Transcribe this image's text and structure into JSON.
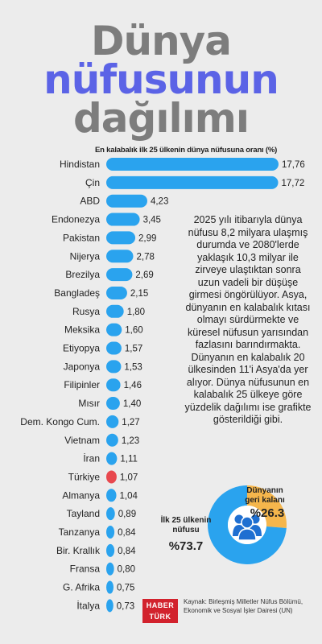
{
  "title": {
    "line1": "Dünya",
    "line2": "nüfusunun",
    "line3": "dağılımı"
  },
  "description": "2025 yılı itibarıyla dünya nüfusu 8,2 milyara ulaşmış durumda ve 2080'lerde yaklaşık 10,3 milyar ile zirveye ulaştıktan sonra uzun vadeli bir düşüşe girmesi öngörülüyor. Asya, dünyanın en kalabalık kıtası olmayı sürdürmekte ve küresel nüfusun yarısından fazlasını barındırmakta. Dünyanın en kalabalık 20 ülkesinden 11'i Asya'da yer alıyor. Dünya nüfusunun en kalabalık 25 ülkeye göre yüzdelik dağılımı ise grafikte gösterildiği gibi.",
  "source": {
    "logo_line1": "HABER",
    "logo_line2": "TÜRK",
    "text": "Kaynak: Birleşmiş Milletler Nüfus Bölümü, Ekonomik ve Sosyal İşler Dairesi (UN)"
  },
  "colors": {
    "bar": "#2aa3ee",
    "highlight": "#e8484e",
    "title_accent": "#5b63e6",
    "title_gray": "#7d7d7d",
    "pie_blue": "#2aa3ee",
    "pie_orange": "#f5b64c",
    "people_icon": "#1f6fd1"
  },
  "chart_data": [
    {
      "type": "bar",
      "orientation": "horizontal",
      "title": "En kalabalık ilk 25 ülkenin dünya nüfusuna oranı (%)",
      "categories": [
        "Hindistan",
        "Çin",
        "ABD",
        "Endonezya",
        "Pakistan",
        "Nijerya",
        "Brezilya",
        "Bangladeş",
        "Rusya",
        "Meksika",
        "Etiyopya",
        "Japonya",
        "Filipinler",
        "Mısır",
        "Dem. Kongo Cum.",
        "Vietnam",
        "İran",
        "Türkiye",
        "Almanya",
        "Tayland",
        "Tanzanya",
        "Bir. Krallık",
        "Fransa",
        "G. Afrika",
        "İtalya"
      ],
      "values": [
        17.76,
        17.72,
        4.23,
        3.45,
        2.99,
        2.78,
        2.69,
        2.15,
        1.8,
        1.6,
        1.57,
        1.53,
        1.46,
        1.4,
        1.27,
        1.23,
        1.11,
        1.07,
        1.04,
        0.89,
        0.84,
        0.84,
        0.8,
        0.75,
        0.73
      ],
      "value_labels": [
        "17,76",
        "17,72",
        "4,23",
        "3,45",
        "2,99",
        "2,78",
        "2,69",
        "2,15",
        "1,80",
        "1,60",
        "1,57",
        "1,53",
        "1,46",
        "1,40",
        "1,27",
        "1,23",
        "1,11",
        "1,07",
        "1,04",
        "0,89",
        "0,84",
        "0,84",
        "0,80",
        "0,75",
        "0,73"
      ],
      "highlight": "Türkiye",
      "xlim": [
        0,
        17.76
      ],
      "grid": false
    },
    {
      "type": "pie",
      "categories": [
        "Ilk 25 ülkenin nüfusu",
        "Dünyanın geri kalanı"
      ],
      "label_lines": [
        [
          "İlk 25 ülkenin",
          "nüfusu"
        ],
        [
          "Dünyanın",
          "geri kalanı"
        ]
      ],
      "values": [
        73.7,
        26.3
      ],
      "value_labels": [
        "%73.7",
        "%26.3"
      ]
    }
  ]
}
